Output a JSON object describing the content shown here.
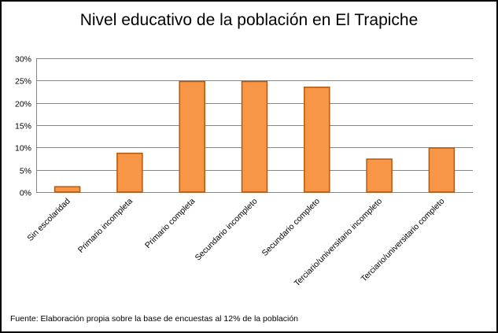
{
  "chart_data": {
    "type": "bar",
    "title": "Nivel educativo de la población en El Trapiche",
    "categories": [
      "Sin escolaridad",
      "Primario incompleta",
      "Primario completa",
      "Secundario incompleto",
      "Secundario completo",
      "Terciario/universitario incompleto",
      "Terciario/universitario completo"
    ],
    "values": [
      1.2,
      8.7,
      24.8,
      24.8,
      23.5,
      7.4,
      9.9
    ],
    "value_unit": "%",
    "ylim": [
      0,
      30
    ],
    "yticks": [
      "0%",
      "5%",
      "10%",
      "15%",
      "20%",
      "25%",
      "30%"
    ],
    "grid": true,
    "legend": "none",
    "bar_color": "#F79646",
    "bar_border_color": "#B65708",
    "note": "Fuente: Elaboración propia sobre la base de encuestas al 12% de la población"
  }
}
